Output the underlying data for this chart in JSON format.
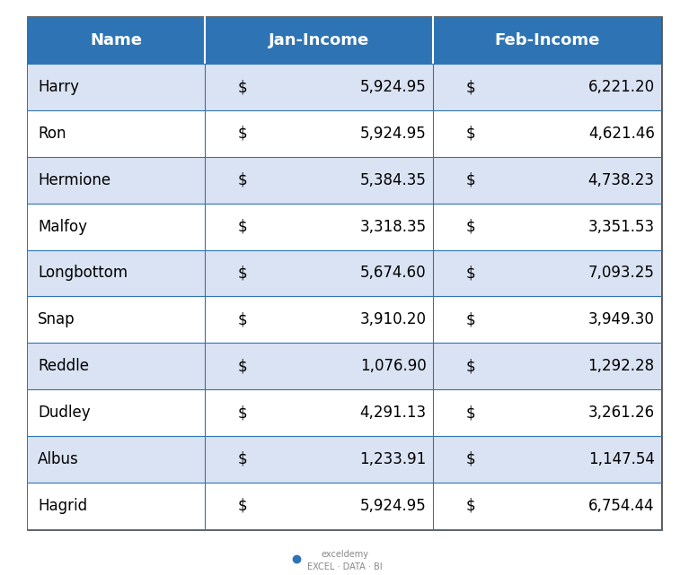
{
  "headers": [
    "Name",
    "Jan-Income",
    "Feb-Income"
  ],
  "rows": [
    [
      "Harry",
      "$",
      "5,924.95",
      "$",
      "6,221.20"
    ],
    [
      "Ron",
      "$",
      "5,924.95",
      "$",
      "4,621.46"
    ],
    [
      "Hermione",
      "$",
      "5,384.35",
      "$",
      "4,738.23"
    ],
    [
      "Malfoy",
      "$",
      "3,318.35",
      "$",
      "3,351.53"
    ],
    [
      "Longbottom",
      "$",
      "5,674.60",
      "$",
      "7,093.25"
    ],
    [
      "Snap",
      "$",
      "3,910.20",
      "$",
      "3,949.30"
    ],
    [
      "Reddle",
      "$",
      "1,076.90",
      "$",
      "1,292.28"
    ],
    [
      "Dudley",
      "$",
      "4,291.13",
      "$",
      "3,261.26"
    ],
    [
      "Albus",
      "$",
      "1,233.91",
      "$",
      "1,147.54"
    ],
    [
      "Hagrid",
      "$",
      "5,924.95",
      "$",
      "6,754.44"
    ]
  ],
  "header_bg": "#2E74B5",
  "header_text": "#FFFFFF",
  "row_bg_odd": "#DAE3F3",
  "row_bg_even": "#FFFFFF",
  "cell_text": "#000000",
  "border_color": "#2E74B5",
  "outer_border": "#555555",
  "fig_bg": "#FFFFFF",
  "watermark": "exceldemy\nEXCEL · DATA · BI",
  "figsize": [
    7.67,
    6.41
  ],
  "dpi": 100
}
